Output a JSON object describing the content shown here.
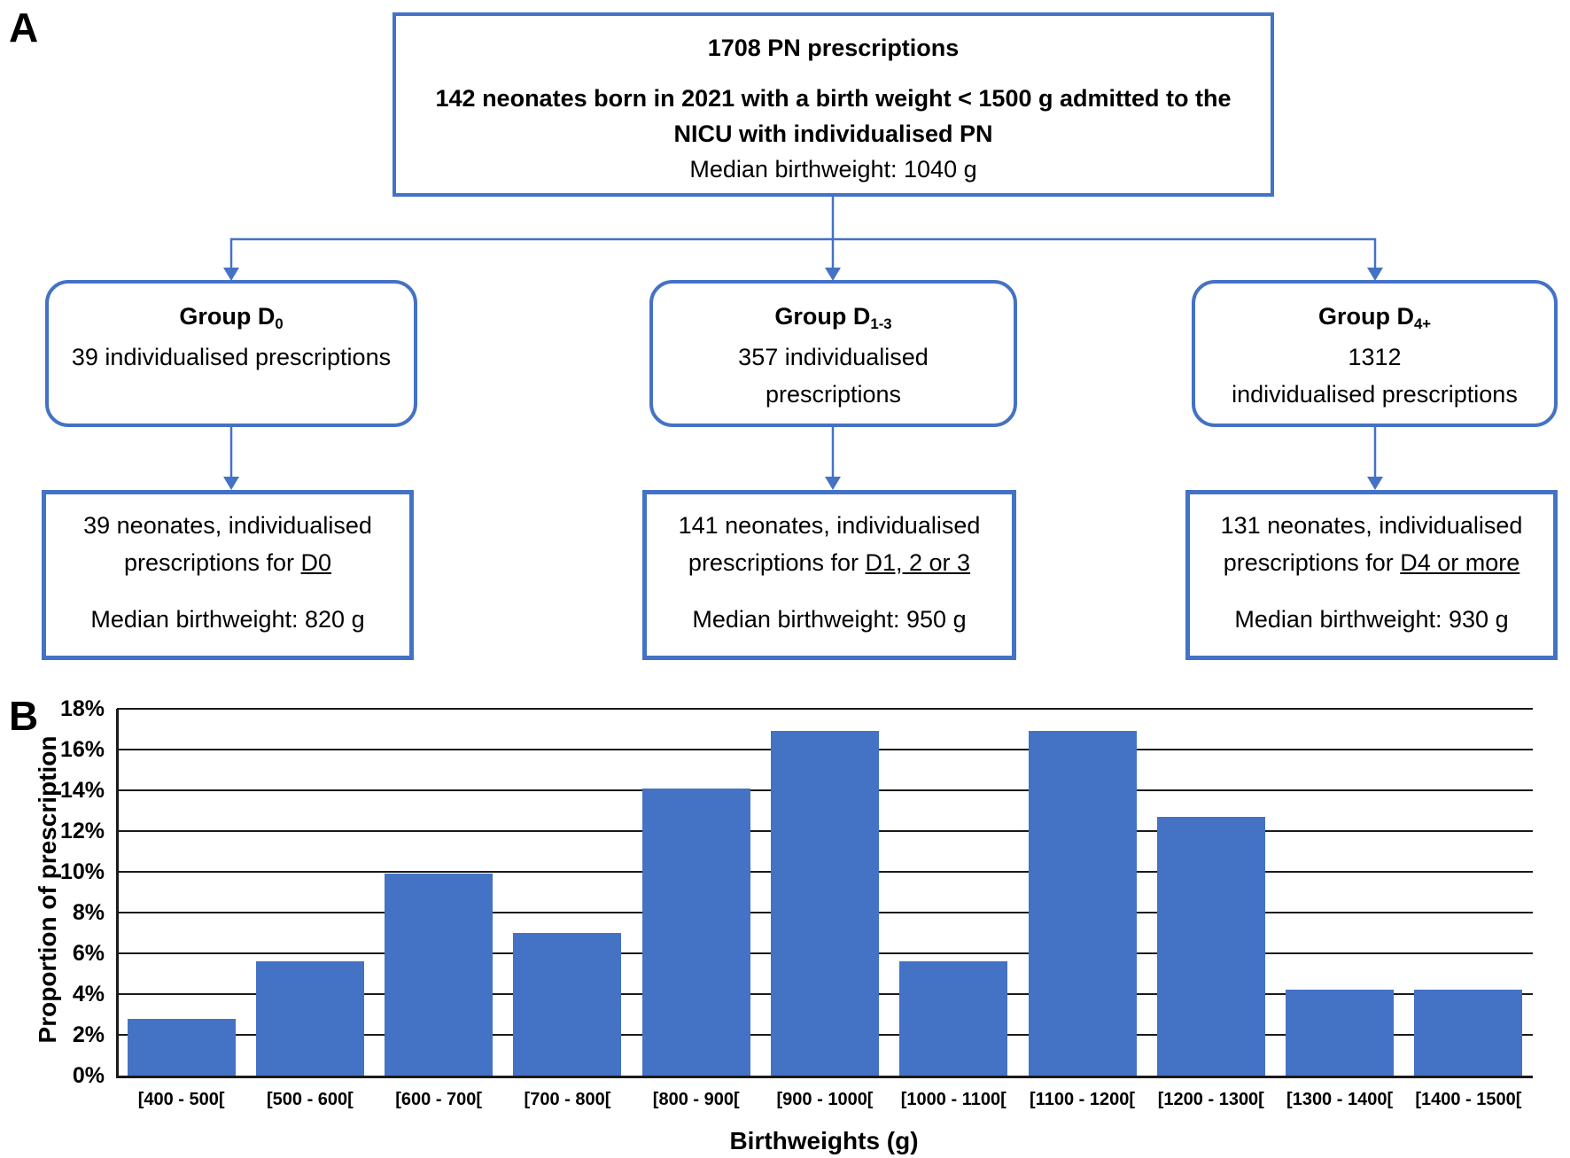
{
  "panelA": {
    "label": "A",
    "top_box": {
      "title": "1708 PN prescriptions",
      "body_line1": "142 neonates born in 2021 with a birth weight < 1500 g admitted to the",
      "body_line2": "NICU with individualised PN",
      "median": "Median birthweight: 1040 g"
    },
    "groups": [
      {
        "name_base": "Group D",
        "name_sub": "0",
        "line1": "39 individualised prescriptions",
        "line2": ""
      },
      {
        "name_base": "Group D",
        "name_sub": "1-3",
        "line1": "357 individualised",
        "line2": "prescriptions"
      },
      {
        "name_base": "Group D",
        "name_sub": "4+",
        "line1": "1312",
        "line2": "individualised prescriptions"
      }
    ],
    "outcomes": [
      {
        "line1": "39 neonates, individualised",
        "line2_prefix": "prescriptions for ",
        "line2_underline": "D0",
        "median": "Median birthweight: 820 g"
      },
      {
        "line1": "141 neonates, individualised",
        "line2_prefix": "prescriptions for ",
        "line2_underline": "D1, 2 or 3",
        "median": "Median birthweight: 950 g"
      },
      {
        "line1": "131 neonates, individualised",
        "line2_prefix": "prescriptions for ",
        "line2_underline": "D4 or more",
        "median": "Median birthweight: 930 g"
      }
    ]
  },
  "panelB": {
    "label": "B"
  },
  "chart_data": {
    "type": "bar",
    "title": "",
    "xlabel": "Birthweights (g)",
    "ylabel": "Proportion of prescription",
    "categories": [
      "[400 - 500[",
      "[500 - 600[",
      "[600 - 700[",
      "[700 - 800[",
      "[800 - 900[",
      "[900 - 1000[",
      "[1000 - 1100[",
      "[1100 - 1200[",
      "[1200 - 1300[",
      "[1300 - 1400[",
      "[1400 - 1500["
    ],
    "values": [
      2.8,
      5.6,
      9.9,
      7.0,
      14.1,
      16.9,
      5.6,
      16.9,
      12.7,
      4.2,
      4.2
    ],
    "ylim": [
      0,
      18
    ],
    "ytick_step": 2,
    "ytick_suffix": "%",
    "grid": true,
    "legend_position": "none",
    "bar_color": "#4472C4"
  },
  "colors": {
    "accent_blue": "#4472C4",
    "grid_black": "#1a1a1a",
    "text": "#000000"
  }
}
